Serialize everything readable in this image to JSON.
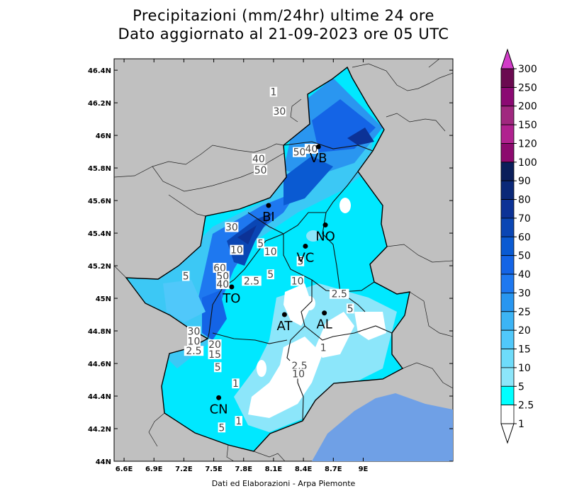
{
  "title": {
    "line1": "Precipitazioni (mm/24hr) ultime 24 ore",
    "line2": "Dato aggiornato al 21-09-2023 ore 05 UTC"
  },
  "credit": "Dati ed Elaborazioni - Arpa Piemonte",
  "map": {
    "lon_ticks": [
      "6.6E",
      "6.9E",
      "7.2E",
      "7.5E",
      "7.8E",
      "8.1E",
      "8.4E",
      "8.7E",
      "9E"
    ],
    "lat_ticks": [
      "46.4N",
      "46.2N",
      "46N",
      "45.8N",
      "45.6N",
      "45.4N",
      "45.2N",
      "45N",
      "44.8N",
      "44.6N",
      "44.4N",
      "44.2N",
      "44N"
    ],
    "background_color": "#c0c0c0",
    "sea_color": "#6fa0e6",
    "cities": [
      {
        "code": "VB",
        "lon": 8.55,
        "lat": 45.93
      },
      {
        "code": "BI",
        "lon": 8.05,
        "lat": 45.57
      },
      {
        "code": "NO",
        "lon": 8.62,
        "lat": 45.45
      },
      {
        "code": "VC",
        "lon": 8.42,
        "lat": 45.32
      },
      {
        "code": "TO",
        "lon": 7.68,
        "lat": 45.07
      },
      {
        "code": "AT",
        "lon": 8.21,
        "lat": 44.9
      },
      {
        "code": "AL",
        "lon": 8.61,
        "lat": 44.91
      },
      {
        "code": "CN",
        "lon": 7.55,
        "lat": 44.39
      }
    ],
    "contour_labels": [
      {
        "text": "1",
        "lon": 8.1,
        "lat": 46.25
      },
      {
        "text": "30",
        "lon": 8.16,
        "lat": 46.13
      },
      {
        "text": "40",
        "lon": 7.95,
        "lat": 45.84
      },
      {
        "text": "50",
        "lon": 7.97,
        "lat": 45.77
      },
      {
        "text": "50",
        "lon": 8.36,
        "lat": 45.88
      },
      {
        "text": "40",
        "lon": 8.48,
        "lat": 45.9
      },
      {
        "text": "30",
        "lon": 7.68,
        "lat": 45.42
      },
      {
        "text": "10",
        "lon": 7.73,
        "lat": 45.28
      },
      {
        "text": "5",
        "lon": 7.97,
        "lat": 45.32
      },
      {
        "text": "10",
        "lon": 8.07,
        "lat": 45.27
      },
      {
        "text": "5",
        "lon": 8.37,
        "lat": 45.21
      },
      {
        "text": "60",
        "lon": 7.56,
        "lat": 45.17
      },
      {
        "text": "50",
        "lon": 7.59,
        "lat": 45.12
      },
      {
        "text": "40",
        "lon": 7.59,
        "lat": 45.07
      },
      {
        "text": "5",
        "lon": 7.22,
        "lat": 45.12
      },
      {
        "text": "2.5",
        "lon": 7.88,
        "lat": 45.09
      },
      {
        "text": "5",
        "lon": 8.07,
        "lat": 45.13
      },
      {
        "text": "10",
        "lon": 8.34,
        "lat": 45.09
      },
      {
        "text": "2.5",
        "lon": 8.76,
        "lat": 45.01
      },
      {
        "text": "5",
        "lon": 8.87,
        "lat": 44.92
      },
      {
        "text": "30",
        "lon": 7.3,
        "lat": 44.78
      },
      {
        "text": "10",
        "lon": 7.3,
        "lat": 44.72
      },
      {
        "text": "2.5",
        "lon": 7.3,
        "lat": 44.66
      },
      {
        "text": "20",
        "lon": 7.51,
        "lat": 44.7
      },
      {
        "text": "15",
        "lon": 7.51,
        "lat": 44.64
      },
      {
        "text": "5",
        "lon": 7.54,
        "lat": 44.56
      },
      {
        "text": "1",
        "lon": 8.6,
        "lat": 44.68
      },
      {
        "text": "2.5",
        "lon": 8.36,
        "lat": 44.57
      },
      {
        "text": "10",
        "lon": 8.35,
        "lat": 44.52
      },
      {
        "text": "1",
        "lon": 7.72,
        "lat": 44.46
      },
      {
        "text": "1",
        "lon": 7.75,
        "lat": 44.23
      },
      {
        "text": "5",
        "lon": 7.58,
        "lat": 44.19
      }
    ]
  },
  "colorbar": {
    "labels": [
      "300",
      "250",
      "200",
      "150",
      "120",
      "100",
      "90",
      "80",
      "70",
      "60",
      "50",
      "40",
      "30",
      "25",
      "20",
      "15",
      "10",
      "5",
      "2.5",
      "1"
    ],
    "colors": [
      "#6a0a50",
      "#8b0a73",
      "#a0287f",
      "#b0228f",
      "#8c0a6e",
      "#0a1e5a",
      "#0a2878",
      "#0c3296",
      "#0a46b4",
      "#0a5ad2",
      "#1464e6",
      "#1e78f0",
      "#2896f0",
      "#3cb4f5",
      "#50c8fa",
      "#6edcfa",
      "#8ce6fa",
      "#00ffff",
      "#ffffff"
    ],
    "top_color": "#d23cc8"
  }
}
